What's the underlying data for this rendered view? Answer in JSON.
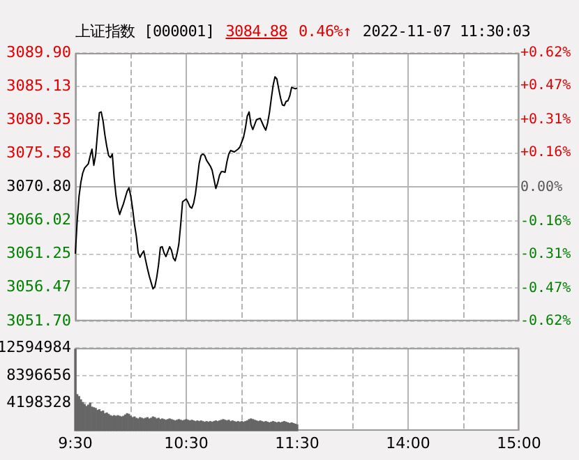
{
  "chart_data": [
    {
      "type": "line",
      "title": "上证指数 [000001]",
      "annotations": [
        "3084.88",
        "0.46%↑",
        "2022-11-07 11:30:03"
      ],
      "color": "#000000",
      "categories": [
        null,
        null,
        null,
        null,
        null,
        null,
        null,
        null,
        null,
        null,
        null,
        null,
        null,
        null,
        null,
        null,
        null,
        null,
        null,
        null,
        null,
        null,
        null,
        null,
        null,
        null,
        null,
        null,
        null,
        null,
        null,
        null,
        null,
        null,
        null,
        null,
        null,
        null,
        null,
        null,
        null,
        null,
        null,
        null,
        null,
        null,
        null,
        null,
        null,
        null,
        null,
        null,
        null,
        null,
        null,
        null,
        null,
        null,
        null,
        null,
        null,
        null,
        null,
        null,
        null,
        null,
        null,
        null,
        null,
        null,
        null,
        null,
        null,
        null,
        null,
        null,
        null,
        null,
        null,
        null,
        null,
        null,
        null,
        null,
        null,
        null,
        null,
        null,
        null,
        null,
        null,
        null,
        null,
        null,
        null,
        null,
        null,
        null,
        null,
        null,
        null,
        null,
        null,
        null,
        null,
        null,
        null,
        null,
        null,
        null,
        null,
        null,
        null,
        null,
        null,
        null,
        null,
        null,
        null,
        null,
        null,
        null,
        null,
        null,
        null,
        null,
        null,
        null,
        null,
        null,
        null,
        null,
        null,
        null,
        null,
        null,
        null,
        null,
        null,
        null,
        null,
        null,
        null,
        null,
        null,
        null,
        null,
        null,
        null,
        null,
        null,
        null,
        null,
        null,
        null,
        null,
        null,
        null,
        null,
        null,
        null,
        null,
        null,
        null,
        null,
        null,
        null,
        null,
        null,
        null,
        null,
        null,
        null,
        null,
        null,
        null,
        null,
        null,
        null,
        null,
        null,
        null,
        null,
        null,
        null,
        null,
        null,
        null,
        null,
        null,
        null,
        null,
        null,
        null,
        null,
        null,
        null,
        null,
        null,
        null,
        null,
        null,
        null,
        null,
        null,
        null,
        null,
        null,
        null,
        null,
        null,
        null,
        null,
        null,
        null,
        null,
        null,
        null,
        null,
        null,
        null,
        null,
        null,
        null,
        null,
        null,
        null,
        null,
        null,
        null,
        null,
        null,
        null,
        null,
        null,
        null,
        null,
        null,
        null,
        null,
        null
      ],
      "values": [
        3061.3,
        3066,
        3069.5,
        3071.5,
        3072.8,
        3073.5,
        3073.8,
        3074.1,
        3075.2,
        3076.2,
        3073.9,
        3075.4,
        3078.5,
        3081.4,
        3081.5,
        3080.2,
        3078.2,
        3076.6,
        3075.3,
        3075.0,
        3075.5,
        3072.1,
        3069.6,
        3067.9,
        3066.9,
        3067.7,
        3068.4,
        3069.3,
        3070.2,
        3070.7,
        3069.5,
        3067.7,
        3065.5,
        3063.8,
        3061.4,
        3060.8,
        3061.3,
        3061.7,
        3060.4,
        3059.2,
        3058.1,
        3057.2,
        3056.3,
        3056.6,
        3057.9,
        3059.7,
        3062.2,
        3062.3,
        3061.4,
        3060.9,
        3061.6,
        3062.3,
        3061.8,
        3060.7,
        3060.3,
        3061.3,
        3062.7,
        3065.5,
        3068.7,
        3068.9,
        3069.1,
        3068.6,
        3068.0,
        3067.8,
        3068.5,
        3069.9,
        3072.0,
        3074.2,
        3075.3,
        3075.5,
        3075.3,
        3074.6,
        3074.2,
        3073.8,
        3073.2,
        3071.9,
        3070.6,
        3071.4,
        3072.5,
        3073.0,
        3073.0,
        3072.9,
        3074.4,
        3075.5,
        3076.0,
        3075.9,
        3075.8,
        3076.0,
        3076.2,
        3076.5,
        3077.2,
        3077.9,
        3079.2,
        3080.9,
        3081.5,
        3079.7,
        3079.0,
        3079.7,
        3080.4,
        3080.5,
        3080.6,
        3080.0,
        3079.4,
        3078.9,
        3079.9,
        3081.4,
        3083.4,
        3085.3,
        3086.5,
        3086.2,
        3084.8,
        3083.5,
        3082.5,
        3082.4,
        3083.0,
        3083.1,
        3083.8,
        3085.0,
        3084.9,
        3084.8,
        3084.9,
        null,
        null,
        null,
        null,
        null,
        null,
        null,
        null,
        null,
        null,
        null,
        null,
        null,
        null,
        null,
        null,
        null,
        null,
        null,
        null,
        null,
        null,
        null,
        null,
        null,
        null,
        null,
        null,
        null,
        null,
        null,
        null,
        null,
        null,
        null,
        null,
        null,
        null,
        null,
        null,
        null,
        null,
        null,
        null,
        null,
        null,
        null,
        null,
        null,
        null,
        null,
        null,
        null,
        null,
        null,
        null,
        null,
        null,
        null,
        null,
        null,
        null,
        null,
        null,
        null,
        null,
        null,
        null,
        null,
        null,
        null,
        null,
        null,
        null,
        null,
        null,
        null,
        null,
        null,
        null,
        null,
        null,
        null,
        null,
        null,
        null,
        null,
        null,
        null,
        null,
        null,
        null,
        null,
        null,
        null,
        null,
        null,
        null,
        null,
        null,
        null,
        null,
        null,
        null,
        null,
        null,
        null,
        null,
        null,
        null,
        null,
        null,
        null,
        null,
        null,
        null,
        null,
        null,
        null,
        null
      ],
      "ylim": [
        3051.7,
        3089.9
      ],
      "yticks": [
        {
          "value": 3089.9,
          "label": "3089.90"
        },
        {
          "value": 3085.13,
          "label": "3085.13"
        },
        {
          "value": 3080.35,
          "label": "3080.35"
        },
        {
          "value": 3075.58,
          "label": "3075.58"
        },
        {
          "value": 3070.8,
          "label": "3070.80"
        },
        {
          "value": 3066.02,
          "label": "3066.02"
        },
        {
          "value": 3061.25,
          "label": "3061.25"
        },
        {
          "value": 3056.47,
          "label": "3056.47"
        },
        {
          "value": 3051.7,
          "label": "3051.70"
        }
      ],
      "y2lim": [
        -0.62,
        0.62
      ],
      "y2ticks": [
        {
          "value": 0.62,
          "label": "+0.62%"
        },
        {
          "value": 0.47,
          "label": "+0.47%"
        },
        {
          "value": 0.31,
          "label": "+0.31%"
        },
        {
          "value": 0.16,
          "label": "+0.16%"
        },
        {
          "value": 0,
          "label": "0.00%"
        },
        {
          "value": -0.16,
          "label": "-0.16%"
        },
        {
          "value": -0.31,
          "label": "-0.31%"
        },
        {
          "value": -0.47,
          "label": "-0.47%"
        },
        {
          "value": -0.62,
          "label": "-0.62%"
        }
      ],
      "grid": true,
      "tick_labels": "y"
    },
    {
      "type": "bar",
      "color": "#666666",
      "categories": [
        "9:30",
        null,
        null,
        null,
        null,
        null,
        null,
        null,
        null,
        null,
        null,
        null,
        null,
        null,
        null,
        null,
        null,
        null,
        null,
        null,
        null,
        null,
        null,
        null,
        null,
        null,
        null,
        null,
        null,
        null,
        null,
        null,
        null,
        null,
        null,
        null,
        null,
        null,
        null,
        null,
        null,
        null,
        null,
        null,
        null,
        null,
        null,
        null,
        null,
        null,
        null,
        null,
        null,
        null,
        null,
        null,
        null,
        null,
        null,
        null,
        "10:30",
        null,
        null,
        null,
        null,
        null,
        null,
        null,
        null,
        null,
        null,
        null,
        null,
        null,
        null,
        null,
        null,
        null,
        null,
        null,
        null,
        null,
        null,
        null,
        null,
        null,
        null,
        null,
        null,
        null,
        null,
        null,
        null,
        null,
        null,
        null,
        null,
        null,
        null,
        null,
        null,
        null,
        null,
        null,
        null,
        null,
        null,
        null,
        null,
        null,
        null,
        null,
        null,
        null,
        null,
        null,
        null,
        null,
        null,
        null,
        "11:30",
        null,
        null,
        null,
        null,
        null,
        null,
        null,
        null,
        null,
        null,
        null,
        null,
        null,
        null,
        null,
        null,
        null,
        null,
        null,
        null,
        null,
        null,
        null,
        null,
        null,
        null,
        null,
        null,
        null,
        null,
        null,
        null,
        null,
        null,
        null,
        null,
        null,
        null,
        null,
        null,
        null,
        null,
        null,
        null,
        null,
        null,
        null,
        null,
        null,
        null,
        null,
        null,
        null,
        null,
        null,
        null,
        null,
        null,
        null,
        "14:00",
        null,
        null,
        null,
        null,
        null,
        null,
        null,
        null,
        null,
        null,
        null,
        null,
        null,
        null,
        null,
        null,
        null,
        null,
        null,
        null,
        null,
        null,
        null,
        null,
        null,
        null,
        null,
        null,
        null,
        null,
        null,
        null,
        null,
        null,
        null,
        null,
        null,
        null,
        null,
        null,
        null,
        null,
        null,
        null,
        null,
        null,
        null,
        null,
        null,
        null,
        null,
        null,
        null,
        null,
        null,
        null,
        null,
        null,
        null,
        "15:00"
      ],
      "values": [
        12400000,
        5500000,
        5200000,
        4700000,
        4300000,
        4000000,
        3700000,
        3900000,
        4200000,
        3600000,
        3500000,
        3400000,
        3100000,
        3200000,
        2900000,
        3000000,
        2600000,
        2700000,
        2500000,
        2300000,
        2200000,
        2300000,
        2200000,
        2300000,
        2200000,
        2100000,
        2200000,
        2400000,
        2600000,
        2500000,
        2200000,
        2000000,
        2100000,
        1900000,
        1800000,
        2000000,
        1900000,
        1800000,
        1900000,
        2000000,
        1800000,
        1900000,
        2100000,
        2000000,
        1800000,
        1900000,
        1700000,
        1800000,
        1700000,
        1600000,
        1700000,
        1800000,
        1700000,
        1600000,
        1500000,
        1600000,
        1700000,
        1600000,
        1500000,
        1600000,
        1700000,
        1600000,
        1500000,
        1600000,
        1500000,
        1400000,
        1500000,
        1400000,
        1500000,
        1400000,
        1300000,
        1400000,
        1300000,
        1400000,
        1300000,
        1400000,
        1500000,
        1400000,
        1500000,
        1600000,
        1700000,
        1600000,
        1500000,
        1600000,
        1400000,
        1500000,
        1400000,
        1300000,
        1400000,
        1300000,
        1400000,
        1300000,
        1400000,
        1500000,
        1700000,
        1800000,
        1700000,
        1600000,
        1500000,
        1400000,
        1500000,
        1400000,
        1300000,
        1400000,
        1300000,
        1200000,
        1300000,
        1400000,
        1300000,
        1200000,
        1300000,
        1200000,
        1300000,
        1400000,
        1300000,
        1200000,
        1100000,
        1200000,
        1100000,
        1000000,
        900000,
        null,
        null,
        null,
        null,
        null,
        null,
        null,
        null,
        null,
        null,
        null,
        null,
        null,
        null,
        null,
        null,
        null,
        null,
        null,
        null,
        null,
        null,
        null,
        null,
        null,
        null,
        null,
        null,
        null,
        null,
        null,
        null,
        null,
        null,
        null,
        null,
        null,
        null,
        null,
        null,
        null,
        null,
        null,
        null,
        null,
        null,
        null,
        null,
        null,
        null,
        null,
        null,
        null,
        null,
        null,
        null,
        null,
        null,
        null,
        null,
        null,
        null,
        null,
        null,
        null,
        null,
        null,
        null,
        null,
        null,
        null,
        null,
        null,
        null,
        null,
        null,
        null,
        null,
        null,
        null,
        null,
        null,
        null,
        null,
        null,
        null,
        null,
        null,
        null,
        null,
        null,
        null,
        null,
        null,
        null,
        null,
        null,
        null,
        null,
        null,
        null,
        null,
        null,
        null,
        null,
        null,
        null,
        null,
        null,
        null,
        null,
        null,
        null,
        null,
        null,
        null,
        null,
        null,
        null,
        null
      ],
      "ylim": [
        0,
        12594984
      ],
      "yticks": [
        12594984,
        8396656,
        4198328
      ],
      "grid": true
    }
  ]
}
